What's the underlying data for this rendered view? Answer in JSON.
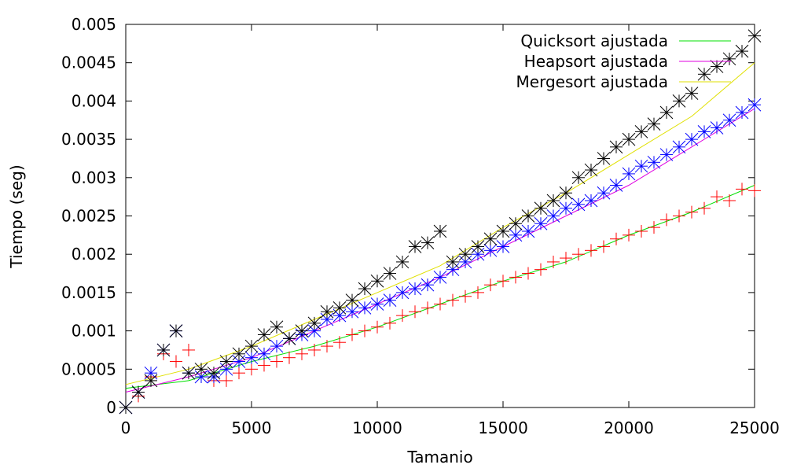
{
  "chart_data": {
    "type": "scatter",
    "xlabel": "Tamanio",
    "ylabel": "Tiempo (seg)",
    "xlim": [
      0,
      25000
    ],
    "ylim": [
      0,
      0.005
    ],
    "x_ticks": [
      "0",
      "5000",
      "10000",
      "15000",
      "20000",
      "25000"
    ],
    "y_ticks": [
      "0",
      "0.0005",
      "0.001",
      "0.0015",
      "0.002",
      "0.0025",
      "0.003",
      "0.0035",
      "0.004",
      "0.0045",
      "0.005"
    ],
    "grid": false,
    "legend_position": "top-right",
    "legend": [
      {
        "label": "Quicksort ajustada",
        "color": "#00e000"
      },
      {
        "label": "Heapsort ajustada",
        "color": "#e000e0"
      },
      {
        "label": "Mergesort ajustada",
        "color": "#e0e000"
      }
    ],
    "series": [
      {
        "marker": "plus",
        "color": "#ff0000",
        "x": [
          0,
          500,
          1000,
          1500,
          2000,
          2500,
          3000,
          3500,
          4000,
          4500,
          5000,
          5500,
          6000,
          6500,
          7000,
          7500,
          8000,
          8500,
          9000,
          9500,
          10000,
          10500,
          11000,
          11500,
          12000,
          12500,
          13000,
          13500,
          14000,
          14500,
          15000,
          15500,
          16000,
          16500,
          17000,
          17500,
          18000,
          18500,
          19000,
          19500,
          20000,
          20500,
          21000,
          21500,
          22000,
          22500,
          23000,
          23500,
          24000,
          24500,
          25000
        ],
        "y": [
          0,
          0.00015,
          0.0004,
          0.0007,
          0.0006,
          0.00075,
          0.0004,
          0.00035,
          0.00035,
          0.00045,
          0.0005,
          0.00055,
          0.0006,
          0.00065,
          0.0007,
          0.00075,
          0.0008,
          0.00085,
          0.00095,
          0.001,
          0.00105,
          0.0011,
          0.0012,
          0.00125,
          0.0013,
          0.00135,
          0.0014,
          0.00145,
          0.0015,
          0.0016,
          0.00165,
          0.0017,
          0.00175,
          0.0018,
          0.0019,
          0.00195,
          0.002,
          0.00205,
          0.0021,
          0.0022,
          0.00225,
          0.0023,
          0.00235,
          0.00245,
          0.0025,
          0.00255,
          0.0026,
          0.00275,
          0.0027,
          0.00285,
          0.00283
        ]
      },
      {
        "marker": "star",
        "color": "#0000ff",
        "x": [
          0,
          500,
          1000,
          1500,
          2000,
          2500,
          3000,
          3500,
          4000,
          4500,
          5000,
          5500,
          6000,
          6500,
          7000,
          7500,
          8000,
          8500,
          9000,
          9500,
          10000,
          10500,
          11000,
          11500,
          12000,
          12500,
          13000,
          13500,
          14000,
          14500,
          15000,
          15500,
          16000,
          16500,
          17000,
          17500,
          18000,
          18500,
          19000,
          19500,
          20000,
          20500,
          21000,
          21500,
          22000,
          22500,
          23000,
          23500,
          24000,
          24500,
          25000
        ],
        "y": [
          0,
          0.0002,
          0.00045,
          0.00075,
          0.001,
          0.00045,
          0.0004,
          0.0004,
          0.0005,
          0.0006,
          0.00065,
          0.0007,
          0.0008,
          0.0009,
          0.00095,
          0.001,
          0.00115,
          0.0012,
          0.00125,
          0.0013,
          0.00135,
          0.0014,
          0.0015,
          0.00155,
          0.0016,
          0.0017,
          0.0018,
          0.0019,
          0.002,
          0.00205,
          0.0021,
          0.00225,
          0.0023,
          0.0024,
          0.0025,
          0.0026,
          0.00265,
          0.0027,
          0.0028,
          0.0029,
          0.00305,
          0.00315,
          0.0032,
          0.0033,
          0.0034,
          0.0035,
          0.0036,
          0.00365,
          0.00375,
          0.00385,
          0.00395
        ]
      },
      {
        "marker": "star",
        "color": "#000000",
        "x": [
          0,
          500,
          1000,
          1500,
          2000,
          2500,
          3000,
          3500,
          4000,
          4500,
          5000,
          5500,
          6000,
          6500,
          7000,
          7500,
          8000,
          8500,
          9000,
          9500,
          10000,
          10500,
          11000,
          11500,
          12000,
          12500,
          13000,
          13500,
          14000,
          14500,
          15000,
          15500,
          16000,
          16500,
          17000,
          17500,
          18000,
          18500,
          19000,
          19500,
          20000,
          20500,
          21000,
          21500,
          22000,
          22500,
          23000,
          23500,
          24000,
          24500,
          25000
        ],
        "y": [
          0,
          0.0002,
          0.00035,
          0.00075,
          0.001,
          0.00045,
          0.0005,
          0.00045,
          0.0006,
          0.0007,
          0.0008,
          0.00095,
          0.00105,
          0.0009,
          0.001,
          0.0011,
          0.00125,
          0.0013,
          0.0014,
          0.00155,
          0.00165,
          0.00175,
          0.0019,
          0.0021,
          0.00215,
          0.0023,
          0.0019,
          0.002,
          0.0021,
          0.0022,
          0.0023,
          0.0024,
          0.0025,
          0.0026,
          0.0027,
          0.0028,
          0.003,
          0.0031,
          0.00325,
          0.0034,
          0.0035,
          0.0036,
          0.0037,
          0.00385,
          0.004,
          0.0041,
          0.00435,
          0.00445,
          0.00455,
          0.00465,
          0.00485
        ]
      }
    ],
    "fitted_curves": [
      {
        "name": "Quicksort ajustada",
        "color": "#00e000",
        "x": [
          0,
          2500,
          5000,
          7500,
          10000,
          12500,
          15000,
          17500,
          20000,
          22500,
          25000
        ],
        "y": [
          0.00025,
          0.00035,
          0.0006,
          0.0008,
          0.00105,
          0.00135,
          0.00165,
          0.0019,
          0.00225,
          0.00255,
          0.0029
        ]
      },
      {
        "name": "Heapsort ajustada",
        "color": "#e000e0",
        "x": [
          0,
          2500,
          5000,
          7500,
          10000,
          12500,
          15000,
          17500,
          20000,
          22500,
          25000
        ],
        "y": [
          0.0002,
          0.0004,
          0.00065,
          0.001,
          0.00135,
          0.0017,
          0.0021,
          0.0025,
          0.0029,
          0.0034,
          0.0039
        ]
      },
      {
        "name": "Mergesort ajustada",
        "color": "#e0e000",
        "x": [
          0,
          2500,
          5000,
          7500,
          10000,
          12500,
          15000,
          17500,
          20000,
          22500,
          25000
        ],
        "y": [
          0.0003,
          0.0005,
          0.0008,
          0.00115,
          0.0015,
          0.00185,
          0.00235,
          0.0028,
          0.0033,
          0.0038,
          0.0045
        ]
      }
    ]
  }
}
